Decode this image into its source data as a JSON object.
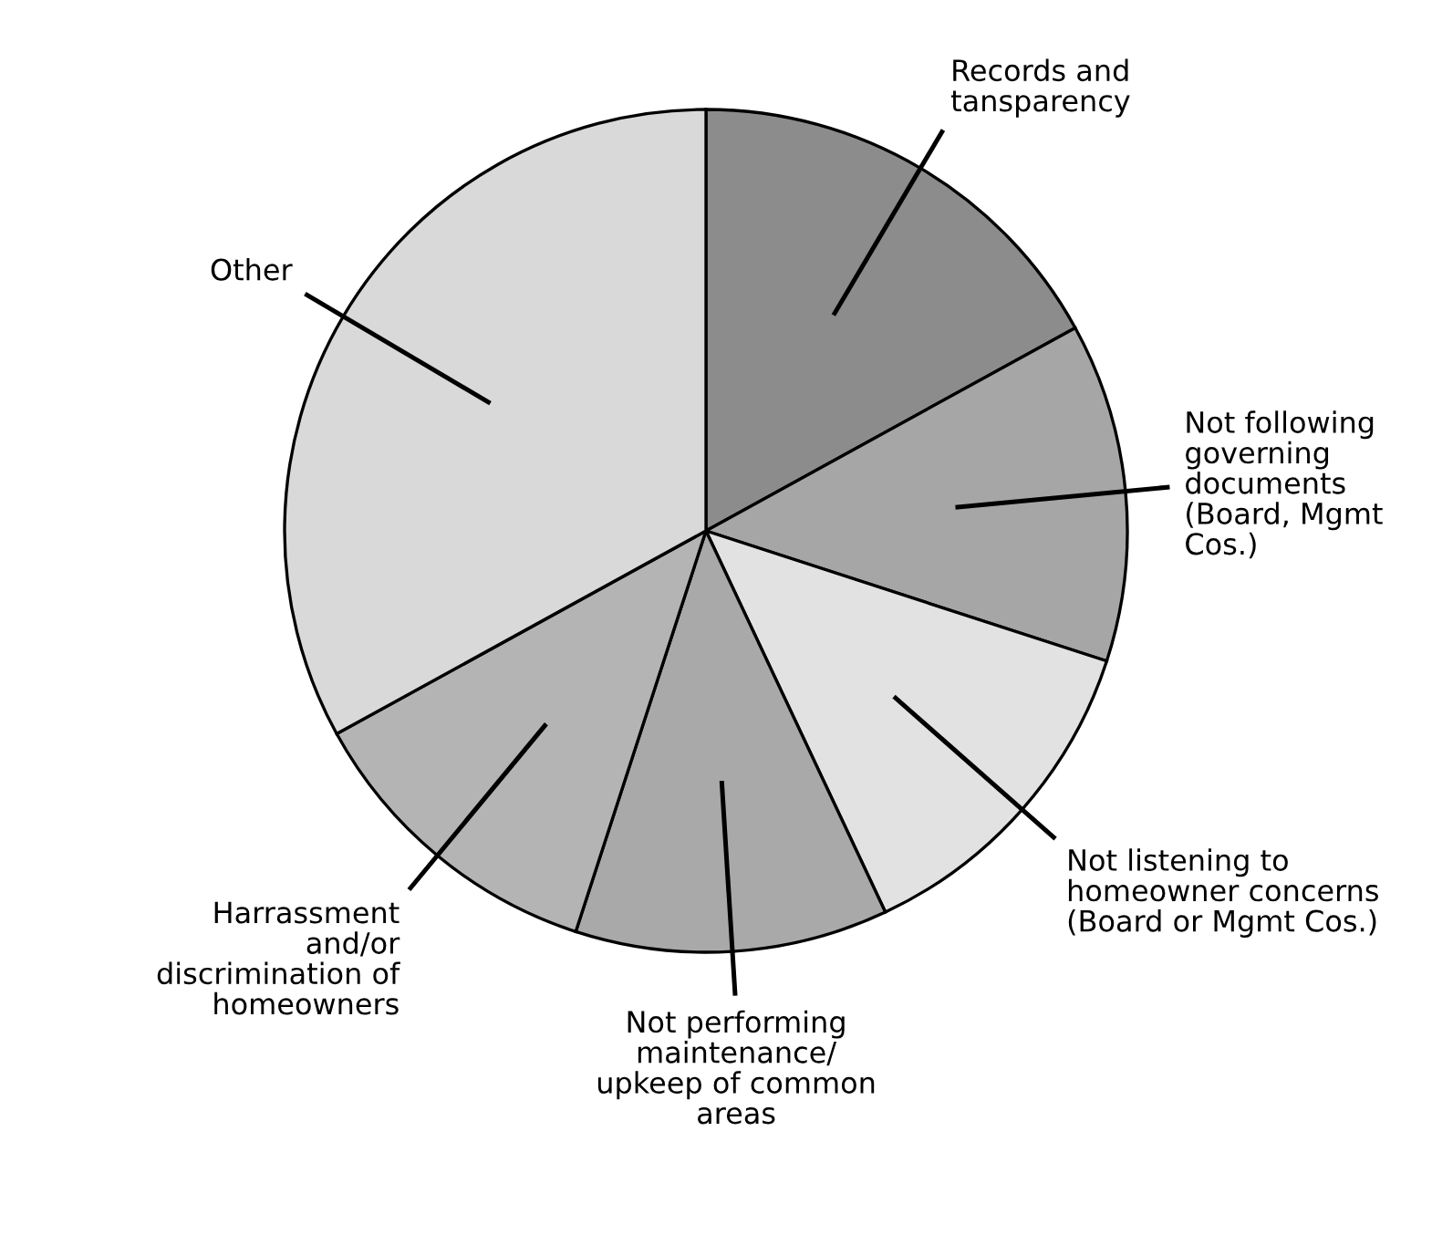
{
  "chart_data": {
    "type": "pie",
    "categories": [
      "Records and\ntansparency",
      "Not following\ngoverning\ndocuments\n(Board, Mgmt\nCos.)",
      "Not listening to\nhomeowner concerns\n(Board or Mgmt Cos.)",
      "Not performing\nmaintenance/\nupkeep of common\nareas",
      "Harrassment\nand/or\ndiscrimination of\nhomeowners",
      "Other"
    ],
    "values": [
      17,
      13,
      13,
      12,
      12,
      33
    ],
    "colors": [
      "#8c8c8c",
      "#a6a6a6",
      "#e2e2e2",
      "#a9a9a9",
      "#b4b4b4",
      "#d9d9d9"
    ]
  }
}
